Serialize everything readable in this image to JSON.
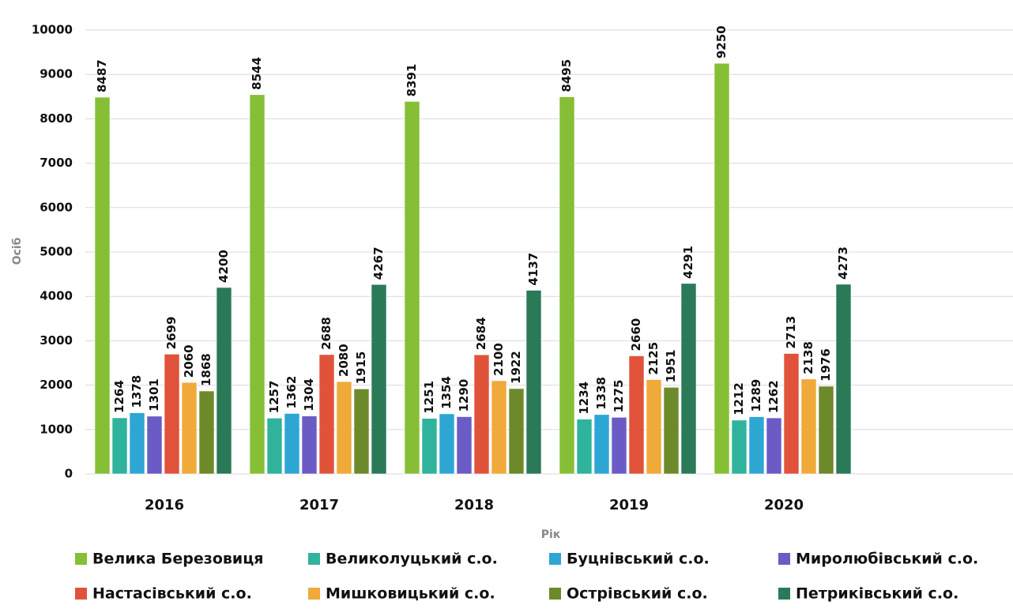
{
  "chart_data": {
    "type": "bar",
    "categories": [
      "2016",
      "2017",
      "2018",
      "2019",
      "2020"
    ],
    "series": [
      {
        "name": "Велика Березовиця",
        "color": "#86bf35",
        "values": [
          8487,
          8544,
          8391,
          8495,
          9250
        ]
      },
      {
        "name": "Великолуцький с.о.",
        "color": "#2fb39c",
        "values": [
          1264,
          1257,
          1251,
          1234,
          1212
        ]
      },
      {
        "name": "Буцнівський с.о.",
        "color": "#2ea6d4",
        "values": [
          1378,
          1362,
          1354,
          1338,
          1289
        ]
      },
      {
        "name": "Миролюбівський с.о.",
        "color": "#6a5cc4",
        "values": [
          1301,
          1304,
          1290,
          1275,
          1262
        ]
      },
      {
        "name": "Настасівський с.о.",
        "color": "#e0533a",
        "values": [
          2699,
          2688,
          2684,
          2660,
          2713
        ]
      },
      {
        "name": "Мишковицький с.о.",
        "color": "#f0aa3a",
        "values": [
          2060,
          2080,
          2100,
          2125,
          2138
        ]
      },
      {
        "name": "Острівський с.о.",
        "color": "#6c8a2a",
        "values": [
          1868,
          1915,
          1922,
          1951,
          1976
        ]
      },
      {
        "name": "Петриківський с.о.",
        "color": "#2a7a58",
        "values": [
          4200,
          4267,
          4137,
          4291,
          4273
        ]
      }
    ],
    "xlabel": "Рік",
    "ylabel": "Осіб",
    "ylim": [
      0,
      10000
    ],
    "yticks": [
      0,
      1000,
      2000,
      3000,
      4000,
      5000,
      6000,
      7000,
      8000,
      9000,
      10000
    ],
    "grid": true,
    "legend": "bottom"
  }
}
